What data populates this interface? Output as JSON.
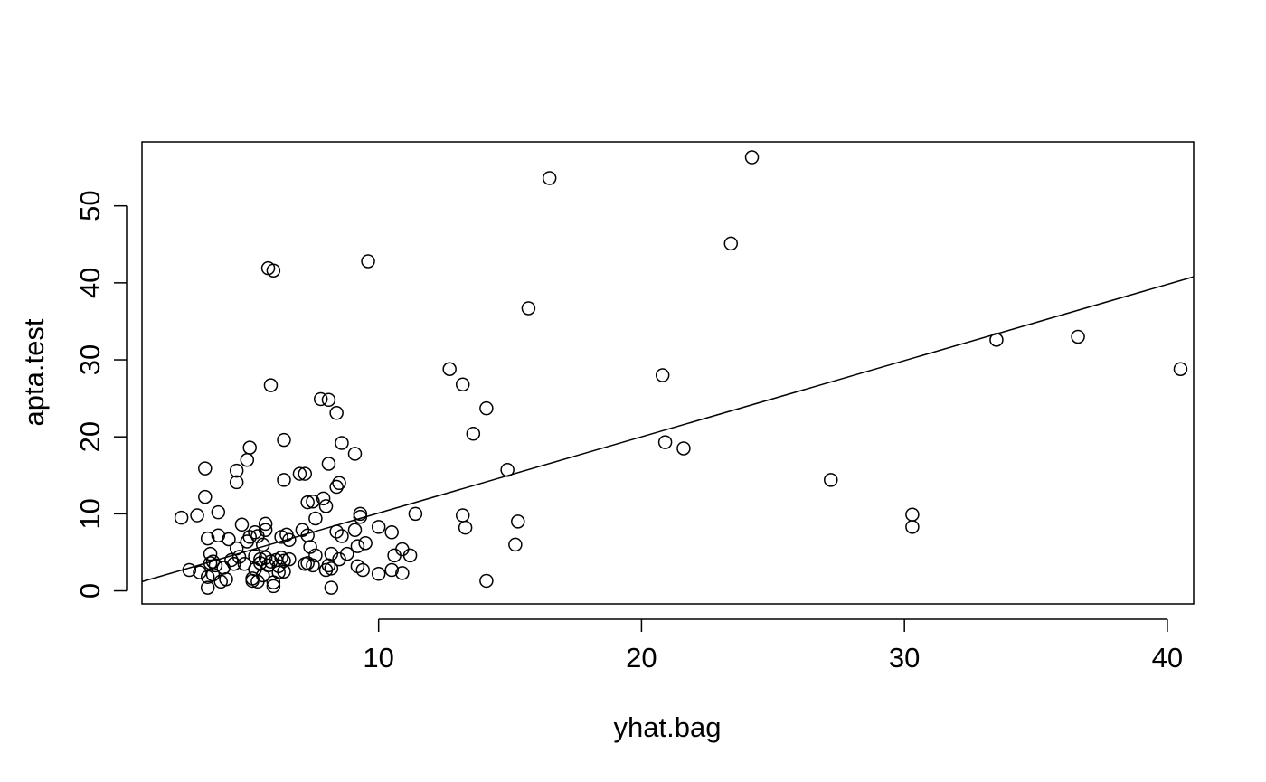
{
  "chart_data": {
    "type": "scatter",
    "title": "",
    "xlabel": "yhat.bag",
    "ylabel": "apta.test",
    "xlim": [
      1.0,
      41.0
    ],
    "ylim": [
      -1.7,
      58.3
    ],
    "x_ticks": [
      10,
      20,
      30,
      40
    ],
    "x_tick_labels": [
      "10",
      "20",
      "30",
      "40"
    ],
    "y_ticks": [
      0,
      10,
      20,
      30,
      40,
      50
    ],
    "y_tick_labels": [
      "0",
      "10",
      "20",
      "30",
      "40",
      "50"
    ],
    "grid": false,
    "line": {
      "intercept": 0.2,
      "slope": 0.99
    },
    "points": [
      [
        2.5,
        9.5
      ],
      [
        2.8,
        2.7
      ],
      [
        3.1,
        9.8
      ],
      [
        3.2,
        2.4
      ],
      [
        3.4,
        15.9
      ],
      [
        3.4,
        12.2
      ],
      [
        3.5,
        6.8
      ],
      [
        3.5,
        0.4
      ],
      [
        3.5,
        1.8
      ],
      [
        3.6,
        3.6
      ],
      [
        3.6,
        4.8
      ],
      [
        3.7,
        2.1
      ],
      [
        3.7,
        3.8
      ],
      [
        3.8,
        3.3
      ],
      [
        3.9,
        7.2
      ],
      [
        3.9,
        10.2
      ],
      [
        4.0,
        1.2
      ],
      [
        4.1,
        3.0
      ],
      [
        4.2,
        1.5
      ],
      [
        4.3,
        6.7
      ],
      [
        4.4,
        4.0
      ],
      [
        4.5,
        3.5
      ],
      [
        4.6,
        5.5
      ],
      [
        4.6,
        14.1
      ],
      [
        4.6,
        15.6
      ],
      [
        4.7,
        4.4
      ],
      [
        4.8,
        8.6
      ],
      [
        4.9,
        3.5
      ],
      [
        5.0,
        6.4
      ],
      [
        5.0,
        17.0
      ],
      [
        5.1,
        18.6
      ],
      [
        5.1,
        7.0
      ],
      [
        5.2,
        1.3
      ],
      [
        5.2,
        1.6
      ],
      [
        5.3,
        7.6
      ],
      [
        5.3,
        4.5
      ],
      [
        5.3,
        2.8
      ],
      [
        5.4,
        7.1
      ],
      [
        5.4,
        1.2
      ],
      [
        5.5,
        3.6
      ],
      [
        5.5,
        4.1
      ],
      [
        5.6,
        6.0
      ],
      [
        5.6,
        2.0
      ],
      [
        5.7,
        8.7
      ],
      [
        5.7,
        7.9
      ],
      [
        5.7,
        4.3
      ],
      [
        5.8,
        3.3
      ],
      [
        5.8,
        41.9
      ],
      [
        5.9,
        26.7
      ],
      [
        5.9,
        3.8
      ],
      [
        6.0,
        0.6
      ],
      [
        6.0,
        1.1
      ],
      [
        6.0,
        41.6
      ],
      [
        6.1,
        4.0
      ],
      [
        6.2,
        3.2
      ],
      [
        6.2,
        2.4
      ],
      [
        6.3,
        7.0
      ],
      [
        6.3,
        4.3
      ],
      [
        6.4,
        2.5
      ],
      [
        6.4,
        3.9
      ],
      [
        6.4,
        19.6
      ],
      [
        6.4,
        14.4
      ],
      [
        6.5,
        7.3
      ],
      [
        6.6,
        4.1
      ],
      [
        6.6,
        6.6
      ],
      [
        7.0,
        15.2
      ],
      [
        7.1,
        7.9
      ],
      [
        7.2,
        15.2
      ],
      [
        7.2,
        3.5
      ],
      [
        7.3,
        3.6
      ],
      [
        7.3,
        11.5
      ],
      [
        7.3,
        7.2
      ],
      [
        7.4,
        5.7
      ],
      [
        7.5,
        3.3
      ],
      [
        7.5,
        11.6
      ],
      [
        7.6,
        9.4
      ],
      [
        7.6,
        4.6
      ],
      [
        7.8,
        24.9
      ],
      [
        7.9,
        12.0
      ],
      [
        8.0,
        11.0
      ],
      [
        8.0,
        2.7
      ],
      [
        8.1,
        3.3
      ],
      [
        8.1,
        24.8
      ],
      [
        8.1,
        16.5
      ],
      [
        8.2,
        2.9
      ],
      [
        8.2,
        4.8
      ],
      [
        8.2,
        0.4
      ],
      [
        8.4,
        23.1
      ],
      [
        8.4,
        13.5
      ],
      [
        8.4,
        7.7
      ],
      [
        8.5,
        14.0
      ],
      [
        8.5,
        4.1
      ],
      [
        8.6,
        7.1
      ],
      [
        8.6,
        19.2
      ],
      [
        8.8,
        4.8
      ],
      [
        9.1,
        17.8
      ],
      [
        9.1,
        7.9
      ],
      [
        9.2,
        5.8
      ],
      [
        9.2,
        3.2
      ],
      [
        9.3,
        9.6
      ],
      [
        9.3,
        10.0
      ],
      [
        9.4,
        2.7
      ],
      [
        9.5,
        6.2
      ],
      [
        9.6,
        42.8
      ],
      [
        10.0,
        2.2
      ],
      [
        10.0,
        8.3
      ],
      [
        10.5,
        7.6
      ],
      [
        10.5,
        2.7
      ],
      [
        10.6,
        4.6
      ],
      [
        10.9,
        2.3
      ],
      [
        10.9,
        5.4
      ],
      [
        11.2,
        4.6
      ],
      [
        11.4,
        10.0
      ],
      [
        12.7,
        28.8
      ],
      [
        13.2,
        26.8
      ],
      [
        13.2,
        9.8
      ],
      [
        13.3,
        8.2
      ],
      [
        13.6,
        20.4
      ],
      [
        14.1,
        23.7
      ],
      [
        14.1,
        1.3
      ],
      [
        14.9,
        15.7
      ],
      [
        15.2,
        6.0
      ],
      [
        15.3,
        9.0
      ],
      [
        15.7,
        36.7
      ],
      [
        16.5,
        53.6
      ],
      [
        20.8,
        28.0
      ],
      [
        20.9,
        19.3
      ],
      [
        21.6,
        18.5
      ],
      [
        23.4,
        45.1
      ],
      [
        24.2,
        56.3
      ],
      [
        27.2,
        14.4
      ],
      [
        30.3,
        9.9
      ],
      [
        30.3,
        8.3
      ],
      [
        33.5,
        32.6
      ],
      [
        36.6,
        33.0
      ],
      [
        40.5,
        28.8
      ]
    ]
  }
}
